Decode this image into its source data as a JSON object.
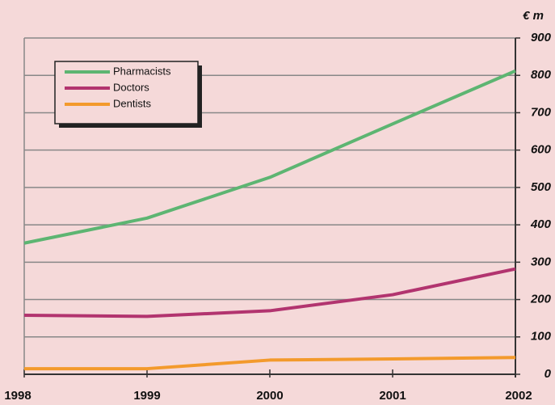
{
  "chart_data": {
    "type": "line",
    "y_label": "€ m",
    "categories": [
      "1998",
      "1999",
      "2000",
      "2001",
      "2002"
    ],
    "series": [
      {
        "name": "Pharmacists",
        "color": "#5db572",
        "values": [
          351,
          418,
          527,
          670,
          812
        ]
      },
      {
        "name": "Doctors",
        "color": "#b2346f",
        "values": [
          158,
          155,
          170,
          213,
          282
        ]
      },
      {
        "name": "Dentists",
        "color": "#f39a2c",
        "values": [
          15,
          15,
          38,
          41,
          45
        ]
      }
    ],
    "ylim": [
      0,
      900
    ],
    "yticks": [
      0,
      100,
      200,
      300,
      400,
      500,
      600,
      700,
      800,
      900
    ],
    "grid": true,
    "legend": "upper-left"
  }
}
